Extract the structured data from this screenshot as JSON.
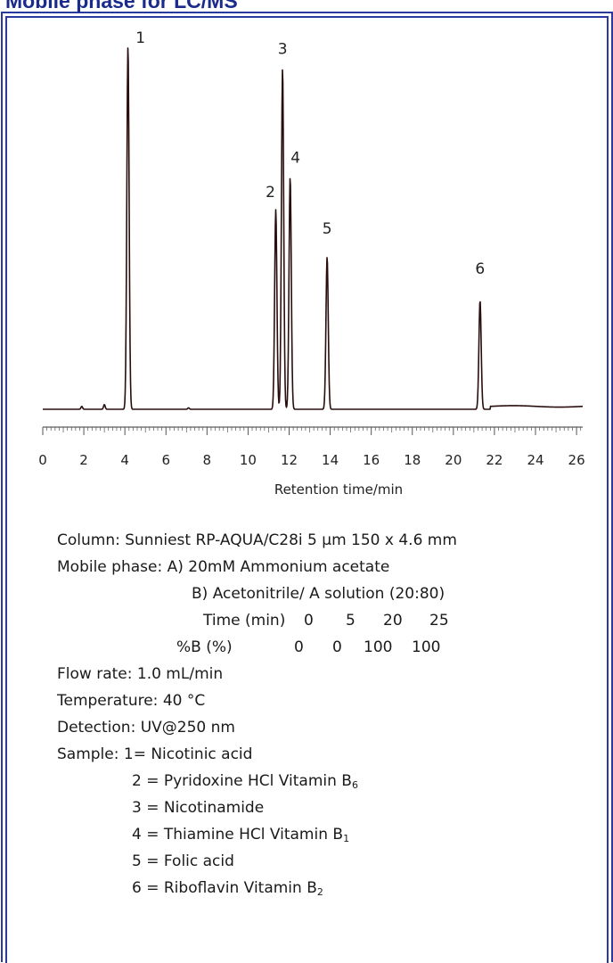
{
  "title": "Mobile phase for LC/MS",
  "chart_data": {
    "type": "line",
    "xlabel": "Retention time/min",
    "ylabel": "",
    "xlim": [
      0,
      26.3
    ],
    "x_ticks": [
      "0",
      "2",
      "4",
      "6",
      "8",
      "10",
      "12",
      "14",
      "16",
      "18",
      "20",
      "22",
      "24",
      "26"
    ],
    "grid": false,
    "series": [
      {
        "peaks": [
          {
            "label": "1",
            "x": 4.15,
            "height": 1.0
          },
          {
            "label": "2",
            "x": 11.35,
            "height": 0.55
          },
          {
            "label": "3",
            "x": 11.68,
            "height": 0.94
          },
          {
            "label": "4",
            "x": 12.05,
            "height": 0.64
          },
          {
            "label": "5",
            "x": 13.85,
            "height": 0.42
          },
          {
            "label": "6",
            "x": 21.3,
            "height": 0.3
          }
        ],
        "minor_peaks": [
          {
            "x": 1.9,
            "height": 0.008
          },
          {
            "x": 3.0,
            "height": 0.013
          },
          {
            "x": 7.1,
            "height": 0.004
          }
        ],
        "color": "#2a0d0d"
      }
    ]
  },
  "conditions": {
    "column": "Column: Sunniest  RP-AQUA/C28i  5 μm  150 x 4.6 mm",
    "mobile_phase_a": "Mobile phase: A) 20mM Ammonium acetate",
    "mobile_phase_b": "B) Acetonitrile/ A solution  (20:80)",
    "gradient_time_label": "Time (min)",
    "gradient_times": [
      "0",
      "5",
      "20",
      "25"
    ],
    "gradient_b_label": "%B  (%)",
    "gradient_b_values": [
      "0",
      "0",
      "100",
      "100"
    ],
    "flow_rate": "Flow rate: 1.0 mL/min",
    "temperature": "Temperature: 40 °C",
    "detection": "Detection: UV@250 nm",
    "sample_label": "Sample: 1= Nicotinic acid",
    "samples": [
      {
        "text": "2 = Pyridoxine HCl  Vitamin B",
        "sub": "6"
      },
      {
        "text": "3 = Nicotinamide",
        "sub": ""
      },
      {
        "text": "4 = Thiamine HCl  Vitamin B",
        "sub": "1"
      },
      {
        "text": "5 = Folic acid",
        "sub": ""
      },
      {
        "text": "6 = Riboflavin  Vitamin B",
        "sub": "2"
      }
    ]
  }
}
